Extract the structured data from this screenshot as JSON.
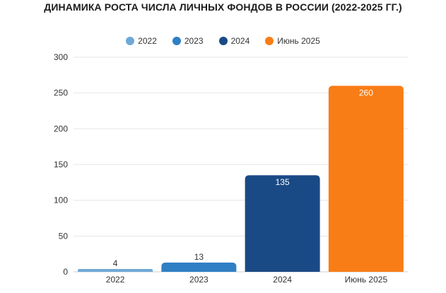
{
  "chart_data": {
    "type": "bar",
    "title": "ДИНАМИКА РОСТА ЧИСЛА ЛИЧНЫХ ФОНДОВ В РОССИИ (2022-2025 ГГ.)",
    "categories": [
      "2022",
      "2023",
      "2024",
      "Июнь 2025"
    ],
    "values": [
      4,
      13,
      135,
      260
    ],
    "colors": [
      "#6fa8d6",
      "#2f7fc4",
      "#1a4a85",
      "#f97d16"
    ],
    "label_colors": [
      "#333333",
      "#333333",
      "#ffffff",
      "#ffffff"
    ],
    "legend": [
      "2022",
      "2023",
      "2024",
      "Июнь 2025"
    ],
    "legend_placement": "top-center",
    "ylim": [
      0,
      300
    ],
    "yticks": [
      "0",
      "50",
      "100",
      "150",
      "200",
      "250",
      "300"
    ],
    "grid": true
  }
}
